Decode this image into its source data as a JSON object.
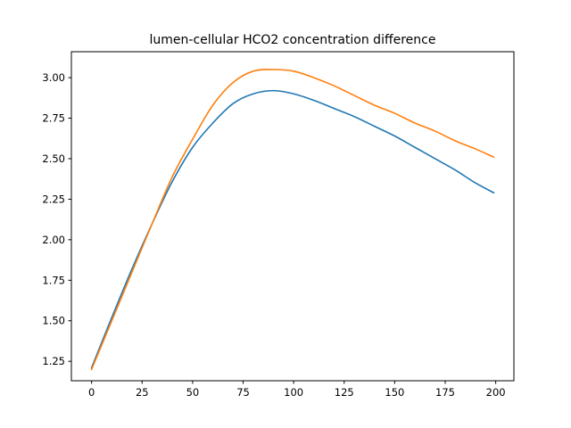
{
  "chart_data": {
    "type": "line",
    "title": "lumen-cellular HCO2 concentration difference",
    "xlabel": "",
    "ylabel": "",
    "xlim": [
      -10,
      209
    ],
    "ylim": [
      1.13,
      3.16
    ],
    "xticks": [
      0,
      25,
      50,
      75,
      100,
      125,
      150,
      175,
      200
    ],
    "yticks": [
      1.25,
      1.5,
      1.75,
      2.0,
      2.25,
      2.5,
      2.75,
      3.0
    ],
    "xtick_labels": [
      "0",
      "25",
      "50",
      "75",
      "100",
      "125",
      "150",
      "175",
      "200"
    ],
    "ytick_labels": [
      "1.25",
      "1.50",
      "1.75",
      "2.00",
      "2.25",
      "2.50",
      "2.75",
      "3.00"
    ],
    "grid": false,
    "series": [
      {
        "color": "#1f77b4",
        "x": [
          0,
          10,
          20,
          30,
          40,
          50,
          60,
          70,
          80,
          90,
          100,
          110,
          120,
          130,
          140,
          150,
          160,
          170,
          180,
          190,
          199
        ],
        "y": [
          1.21,
          1.52,
          1.82,
          2.1,
          2.36,
          2.57,
          2.72,
          2.84,
          2.9,
          2.92,
          2.9,
          2.86,
          2.81,
          2.76,
          2.7,
          2.64,
          2.57,
          2.5,
          2.43,
          2.35,
          2.29
        ]
      },
      {
        "color": "#ff7f0e",
        "x": [
          0,
          10,
          20,
          30,
          40,
          50,
          60,
          70,
          80,
          90,
          100,
          110,
          120,
          130,
          140,
          150,
          160,
          170,
          180,
          190,
          199
        ],
        "y": [
          1.2,
          1.5,
          1.8,
          2.1,
          2.39,
          2.62,
          2.83,
          2.97,
          3.04,
          3.05,
          3.04,
          3.0,
          2.95,
          2.89,
          2.83,
          2.78,
          2.72,
          2.67,
          2.61,
          2.56,
          2.51
        ]
      }
    ]
  }
}
